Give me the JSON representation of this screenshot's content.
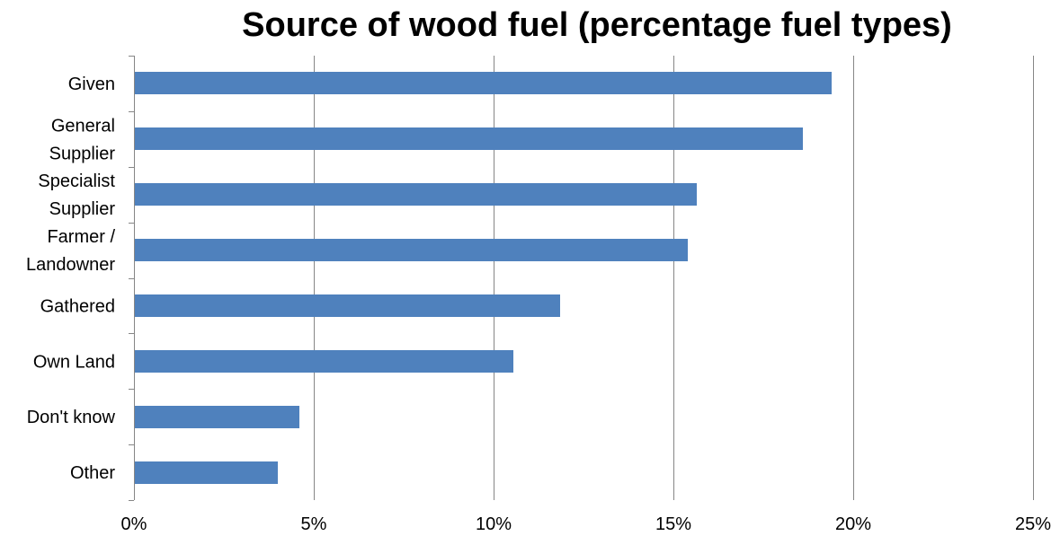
{
  "chart_data": {
    "type": "bar",
    "orientation": "horizontal",
    "title": "Source of wood fuel (percentage fuel types)",
    "xlabel": "",
    "ylabel": "",
    "categories": [
      [
        "Given"
      ],
      [
        "General",
        "Supplier"
      ],
      [
        "Specialist",
        "Supplier"
      ],
      [
        "Farmer /",
        "Landowner"
      ],
      [
        "Gathered"
      ],
      [
        "Own Land"
      ],
      [
        "Don't know"
      ],
      [
        "Other"
      ]
    ],
    "values": [
      19.4,
      18.6,
      15.65,
      15.4,
      11.85,
      10.55,
      4.6,
      4.0
    ],
    "value_unit": "%",
    "xlim": [
      0,
      25
    ],
    "x_ticks": [
      0,
      5,
      10,
      15,
      20,
      25
    ],
    "x_tick_labels": [
      "0%",
      "5%",
      "10%",
      "15%",
      "20%",
      "25%"
    ],
    "grid": "vertical",
    "legend": "none",
    "colors": {
      "bar": "#4F81BD",
      "grid": "#868686",
      "axis": "#868686"
    }
  }
}
